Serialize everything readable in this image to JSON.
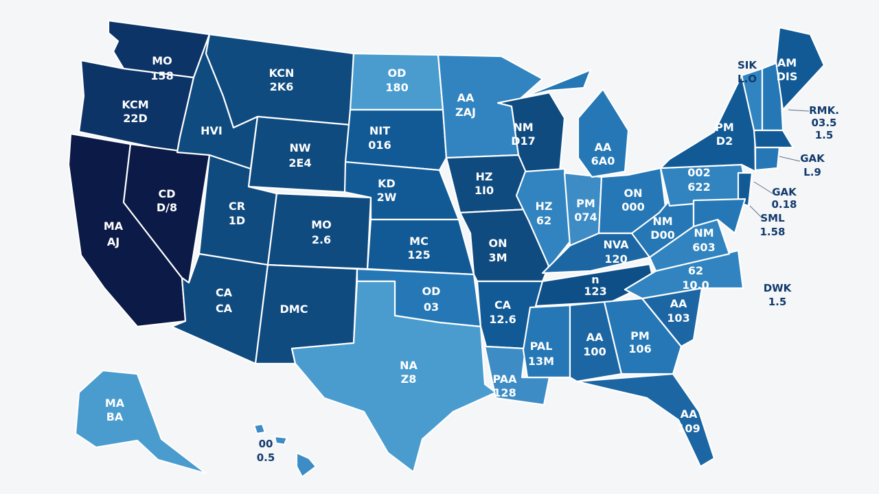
{
  "palette": {
    "darkest": "#0b1a46",
    "dark": "#0d3467",
    "mid_dark": "#104b80",
    "mid": "#1b66a3",
    "light": "#3184bf",
    "lightest": "#4a9ccf"
  },
  "text_colors": {
    "inside": "#ffffff",
    "outside": "#123a6b"
  },
  "regions": {
    "WA": {
      "l1": "MO",
      "l2": "158",
      "color": "#0d3467"
    },
    "OR": {
      "l1": "KCM",
      "l2": "22D",
      "color": "#0d3467"
    },
    "CA": {
      "l1": "MA",
      "l2": "AJ",
      "color": "#0b1a46"
    },
    "NV": {
      "l1": "CD",
      "l2": "D/8",
      "color": "#0b1a46"
    },
    "ID": {
      "l1": "HVI",
      "color": "#104b80"
    },
    "MT": {
      "l1": "KCN",
      "l2": "2K6",
      "color": "#104b80"
    },
    "WY": {
      "l1": "NW",
      "l2": "2E4",
      "color": "#104b80"
    },
    "UT": {
      "l1": "CR",
      "l2": "1D",
      "color": "#104b80"
    },
    "CO": {
      "l1": "MO",
      "l2": "2.6",
      "color": "#104b80"
    },
    "AZ": {
      "l1": "CA",
      "l2": "CA",
      "color": "#104b80"
    },
    "NM": {
      "l1": "DMC",
      "color": "#104b80"
    },
    "ND": {
      "l1": "OD",
      "l2": "180",
      "color": "#4a9ccf"
    },
    "SD": {
      "l1": "NIT",
      "l2": "016",
      "color": "#125a96"
    },
    "NE": {
      "l1": "KD",
      "l2": "2W",
      "color": "#125a96"
    },
    "KS": {
      "l1": "MC",
      "l2": "125",
      "color": "#125a96"
    },
    "OK": {
      "l1": "OD",
      "l2": "03",
      "color": "#2577b5"
    },
    "TX": {
      "l1": "NA",
      "l2": "Z8",
      "color": "#4a9ccf"
    },
    "MN": {
      "l1": "AA",
      "l2": "ZAJ",
      "color": "#3184bf"
    },
    "WI": {
      "l1": "NM",
      "l2": "D17",
      "color": "#104b80"
    },
    "IA": {
      "l1": "HZ",
      "l2": "1I0",
      "color": "#104b80"
    },
    "MO": {
      "l1": "ON",
      "l2": "3M",
      "color": "#104b80"
    },
    "AR": {
      "l1": "CA",
      "l2": "12.6",
      "color": "#125a96"
    },
    "LA": {
      "l1": "PAA",
      "l2": "128",
      "color": "#3d8cc6"
    },
    "IL": {
      "l1": "HZ",
      "l2": "62",
      "color": "#3184bf"
    },
    "IN": {
      "l1": "PM",
      "l2": "074",
      "color": "#3d8cc6"
    },
    "MI": {
      "l1": "AA",
      "l2": "6A0",
      "color": "#2577b5"
    },
    "OH": {
      "l1": "ON",
      "l2": "000",
      "color": "#2577b5"
    },
    "KY": {
      "l1": "NVA",
      "l2": "120",
      "color": "#1b66a3"
    },
    "TN": {
      "l1": "n",
      "l2": "123",
      "color": "#0f4f88"
    },
    "MS": {
      "l1": "PAL",
      "l2": "13M",
      "color": "#2577b5"
    },
    "AL": {
      "l1": "AA",
      "l2": "100",
      "color": "#1b66a3"
    },
    "GA": {
      "l1": "PM",
      "l2": "106",
      "color": "#2577b5"
    },
    "FL": {
      "l1": "AA",
      "l2": "109",
      "color": "#1b66a3"
    },
    "SC": {
      "l1": "AA",
      "l2": "103",
      "color": "#1b66a3"
    },
    "NC": {
      "l1": "62",
      "l2": "10.0",
      "color": "#3184bf"
    },
    "VA": {
      "l1": "NM",
      "l2": "603",
      "color": "#3184bf"
    },
    "WV": {
      "l1": "NM",
      "l2": "D00",
      "color": "#2577b5"
    },
    "PA": {
      "l1": "002",
      "l2": "622",
      "color": "#3184bf"
    },
    "NY": {
      "l1": "PM",
      "l2": "D2",
      "color": "#125a96"
    },
    "VT": {
      "color": "#3184bf"
    },
    "NH": {
      "color": "#2577b5"
    },
    "ME": {
      "l1": "AM",
      "l2": "DIS",
      "color": "#125a96"
    },
    "MA": {
      "color": "#125a96"
    },
    "CT": {
      "color": "#2577b5"
    },
    "NJ": {
      "color": "#125a96"
    },
    "MD": {
      "color": "#2577b5"
    },
    "AK": {
      "l1": "MA",
      "l2": "BA",
      "color": "#4a9ccf"
    },
    "HI": {
      "l1": "00",
      "l2": "0.5",
      "color": "#3d8cc6"
    }
  },
  "callouts": [
    {
      "l1": "SIK",
      "l2": "L.O"
    },
    {
      "l1": "RMK.",
      "l2": "03.5",
      "l3": "1.5"
    },
    {
      "l1": "GAK",
      "l2": "L.9"
    },
    {
      "l1": "GAK",
      "l2": "0.18"
    },
    {
      "l1": "SML",
      "l2": "1.58"
    },
    {
      "l1": "DWK",
      "l2": "1.5"
    }
  ]
}
